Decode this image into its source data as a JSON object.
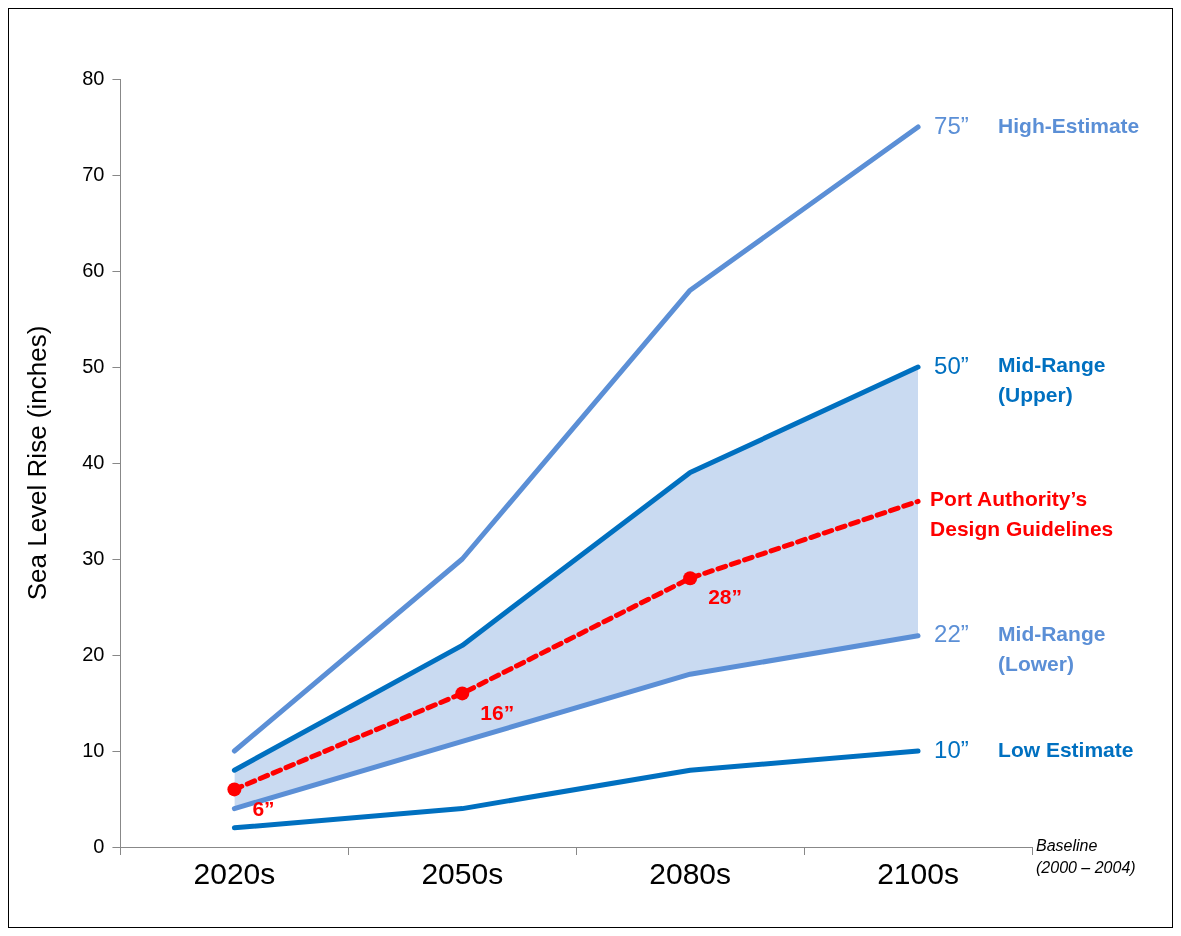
{
  "chart_data": {
    "type": "line",
    "categories": [
      "2020s",
      "2050s",
      "2080s",
      "2100s"
    ],
    "ylabel": "Sea Level Rise (inches)",
    "ylim": [
      0,
      80
    ],
    "yticks": [
      0,
      10,
      20,
      30,
      40,
      50,
      60,
      70,
      80
    ],
    "grid": false,
    "legend": false,
    "marker": "none",
    "series": [
      {
        "name": "High-Estimate",
        "color": "#5b8fd6",
        "values": [
          10,
          30,
          58,
          75
        ],
        "value_labels": [
          null,
          null,
          null,
          "75”"
        ]
      },
      {
        "name": "Mid-Range (Upper)",
        "color": "#0070c0",
        "values": [
          8,
          21,
          39,
          50
        ],
        "value_labels": [
          null,
          null,
          null,
          "50”"
        ]
      },
      {
        "name": "Port Authority’s Design Guidelines",
        "color": "#ff0000",
        "values": [
          6,
          16,
          28,
          36
        ],
        "value_labels": [
          "6”",
          "16”",
          "28”",
          null
        ],
        "marker": "circle",
        "line_style": "dashed",
        "lower": [
          4,
          11,
          18,
          22
        ],
        "upper": [
          8,
          21,
          39,
          50
        ]
      },
      {
        "name": "Mid-Range (Lower)",
        "color": "#5b8fd6",
        "values": [
          4,
          11,
          18,
          22
        ],
        "value_labels": [
          null,
          null,
          null,
          "22”"
        ]
      },
      {
        "name": "Low Estimate",
        "color": "#0070c0",
        "values": [
          2,
          4,
          8,
          10
        ],
        "value_labels": [
          null,
          null,
          null,
          "10”"
        ]
      }
    ],
    "annotations": [
      "Baseline (2000 – 2004)"
    ]
  }
}
